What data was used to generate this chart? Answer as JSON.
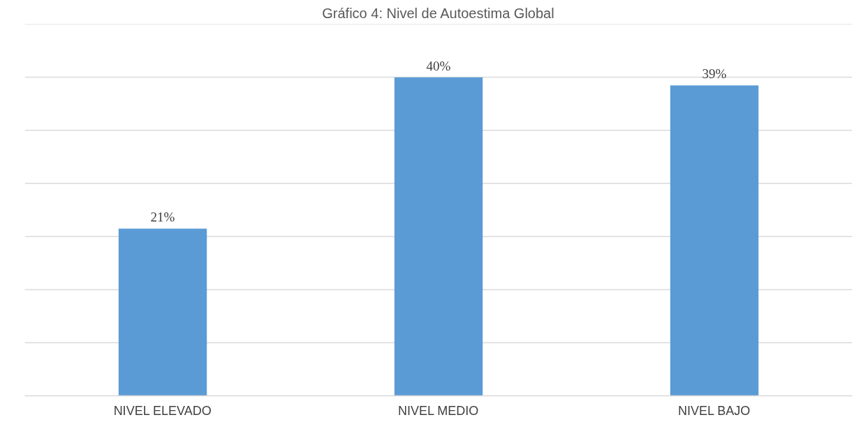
{
  "chart_data": {
    "type": "bar",
    "title": "Gráfico 4: Nivel de Autoestima Global",
    "categories": [
      "NIVEL ELEVADO",
      "NIVEL MEDIO",
      "NIVEL BAJO"
    ],
    "values": [
      21,
      40,
      39
    ],
    "value_labels": [
      "21%",
      "40%",
      "39%"
    ],
    "color": "#5b9bd5",
    "ylim": [
      0,
      46.7
    ],
    "yticks": [
      {
        "value": 0,
        "label": null
      },
      {
        "value": 6.67,
        "label": null
      },
      {
        "value": 13.33,
        "label": null
      },
      {
        "value": 20,
        "label": null
      },
      {
        "value": 26.67,
        "label": null
      },
      {
        "value": 33.33,
        "label": null
      },
      {
        "value": 40,
        "label": null
      },
      {
        "value": 46.67,
        "label": null
      }
    ],
    "grid": "y",
    "tick_labels": "x"
  }
}
